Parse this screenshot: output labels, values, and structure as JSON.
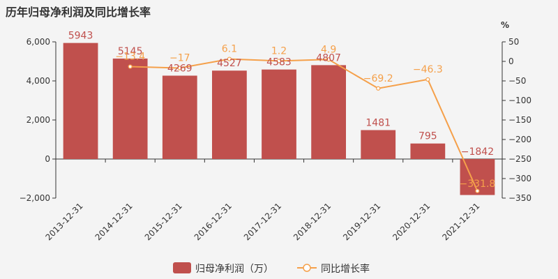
{
  "title": "历年归母净利润及同比增长率",
  "colors": {
    "bar": "#c0504d",
    "line": "#f5a04a",
    "background": "#f4f4f4"
  },
  "chart_data": {
    "type": "bar",
    "title": "历年归母净利润及同比增长率",
    "categories": [
      "2013-12-31",
      "2014-12-31",
      "2015-12-31",
      "2016-12-31",
      "2017-12-31",
      "2018-12-31",
      "2019-12-31",
      "2020-12-31",
      "2021-12-31"
    ],
    "series": [
      {
        "name": "归母净利润（万）",
        "type": "bar",
        "axis": "left",
        "values": [
          5943,
          5145,
          4269,
          4527,
          4583,
          4807,
          1481,
          795,
          -1842
        ],
        "labels": [
          "5943",
          "5145",
          "4269",
          "4527",
          "4583",
          "4807",
          "1481",
          "795",
          "−1842"
        ]
      },
      {
        "name": "同比增长率",
        "type": "line",
        "axis": "right",
        "values": [
          null,
          -13.4,
          -17,
          6.1,
          1.2,
          4.9,
          -69.2,
          -46.3,
          -331.8
        ],
        "labels": [
          "",
          "−13.4",
          "−17",
          "6.1",
          "1.2",
          "4.9",
          "−69.2",
          "−46.3",
          "−331.8"
        ]
      }
    ],
    "y_left": {
      "ylim": [
        -2000,
        6000
      ],
      "ticks": [
        -2000,
        0,
        2000,
        4000,
        6000
      ],
      "tick_labels": [
        "−2,000",
        "0",
        "2,000",
        "4,000",
        "6,000"
      ]
    },
    "y_right": {
      "label": "%",
      "ylim": [
        -350,
        50
      ],
      "ticks": [
        50,
        0,
        -50,
        -100,
        -150,
        -200,
        -250,
        -300,
        -350
      ],
      "tick_labels": [
        "50",
        "0",
        "−50",
        "−100",
        "−150",
        "−200",
        "−250",
        "−300",
        "−350"
      ]
    },
    "grid": false,
    "legend": {
      "placement": "bottom-center",
      "items": [
        "归母净利润（万）",
        "同比增长率"
      ]
    }
  }
}
